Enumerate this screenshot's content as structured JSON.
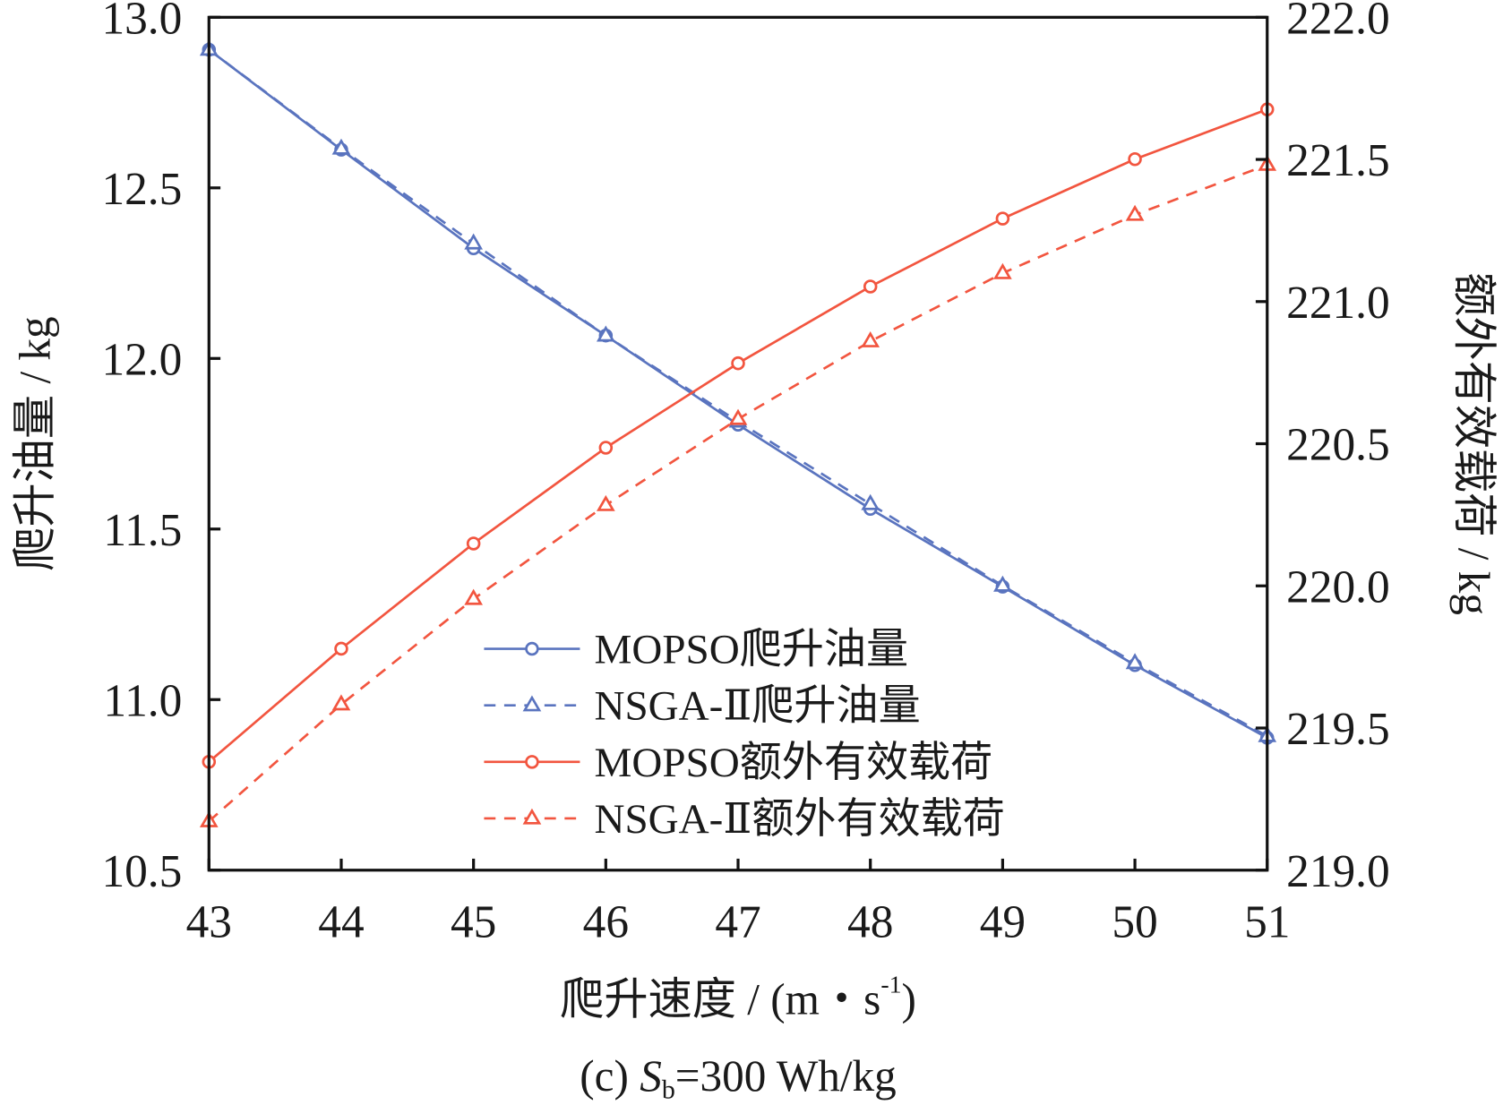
{
  "chart_data": {
    "type": "line",
    "caption_prefix": "(c) ",
    "caption_var": "S",
    "caption_sub": "b",
    "caption_rest": "=300 Wh/kg",
    "xlabel": "爬升速度 / (m・s",
    "xlabel_sup": "-1",
    "xlabel_end": ")",
    "ylabel_left": "爬升油量 / kg",
    "ylabel_right": "额外有效载荷 / kg",
    "xlim": [
      43,
      51
    ],
    "ylim_left": [
      10.5,
      13.0
    ],
    "ylim_right": [
      219.0,
      222.0
    ],
    "x_ticks": [
      "43",
      "44",
      "45",
      "46",
      "47",
      "48",
      "49",
      "50",
      "51"
    ],
    "y_left_ticks": [
      "10.5",
      "11.0",
      "11.5",
      "12.0",
      "12.5",
      "13.0"
    ],
    "y_right_ticks": [
      "219.0",
      "219.5",
      "220.0",
      "220.5",
      "221.0",
      "221.5",
      "222.0"
    ],
    "legend_position": "lower-center",
    "x": [
      43,
      44,
      45,
      46,
      47,
      48,
      49,
      50,
      51
    ],
    "series": [
      {
        "name": "MOPSO爬升油量",
        "axis": "left",
        "color": "#5a74bf",
        "dash": false,
        "marker": "circle",
        "values": [
          12.905,
          12.612,
          12.323,
          12.067,
          11.806,
          11.559,
          11.331,
          11.101,
          10.888
        ]
      },
      {
        "name": "NSGA-Ⅱ爬升油量",
        "axis": "left",
        "color": "#5a74bf",
        "dash": true,
        "marker": "triangle",
        "values": [
          12.905,
          12.615,
          12.337,
          12.067,
          11.815,
          11.573,
          11.334,
          11.107,
          10.893
        ]
      },
      {
        "name": "MOPSO额外有效载荷",
        "axis": "right",
        "color": "#f2553f",
        "dash": false,
        "marker": "circle",
        "values": [
          219.381,
          219.779,
          220.149,
          220.486,
          220.783,
          221.053,
          221.292,
          221.501,
          221.676
        ]
      },
      {
        "name": "NSGA-Ⅱ额外有效载荷",
        "axis": "right",
        "color": "#f2553f",
        "dash": true,
        "marker": "triangle",
        "values": [
          219.172,
          219.583,
          219.954,
          220.284,
          220.587,
          220.86,
          221.1,
          221.305,
          221.481
        ]
      }
    ]
  }
}
